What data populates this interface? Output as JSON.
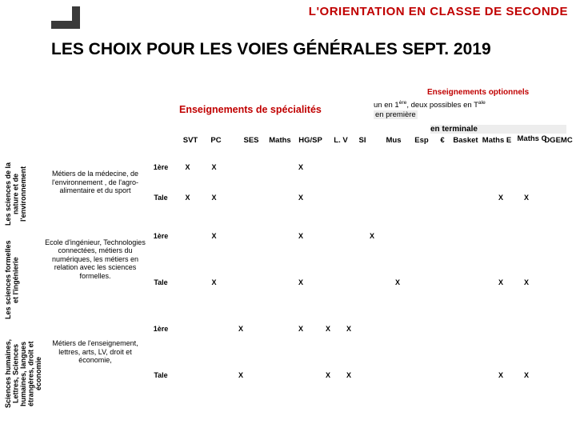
{
  "header": {
    "brand_title": "L'ORIENTATION EN CLASSE DE SECONDE",
    "brand_color": "#c00000"
  },
  "main_title": "LES CHOIX POUR LES VOIES GÉNÉRALES  SEPT. 2019",
  "subhead_optional": "Enseignements optionnels",
  "subhead_specialites": "Enseignements de spécialités",
  "optional_note_line1_a": "un en 1",
  "optional_note_line1_sup": "ère",
  "optional_note_line1_b": ", deux possibles  en T",
  "optional_note_line1_sup2": "ale",
  "optional_note_line2": "en première",
  "optional_terminale": "en terminale",
  "columns": {
    "svt": "SVT",
    "pc": "PC",
    "ses": "SES",
    "maths": "Maths",
    "hgsp": "HG/SP",
    "lv": "L. V",
    "si": "SI",
    "mus": "Mus",
    "esp": "Esp",
    "eur": "€",
    "basket": "Basket",
    "mathsE": "Maths E",
    "mathsC": "Maths C",
    "dgemc": "DGEMC"
  },
  "vcats": {
    "c1": "Les sciences de la nature et de l'environnement",
    "c2": "Les sciences formelles et l'ingénierie",
    "c3": "Sciences humaines, Lettres, Sciences humaines, langues étrangères, droit et économie"
  },
  "level_1ere": "1ère",
  "level_tale": "Tale",
  "rows": [
    {
      "desc": "Métiers de la médecine, de l'environnement , de l'agro-alimentaire et du sport",
      "r1": {
        "lvl": "1ère",
        "svt": "X",
        "pc": "X",
        "ses": "",
        "maths": "",
        "hgsp": "X",
        "lv": "",
        "si": "",
        "mus": "",
        "esp": "",
        "eur": "",
        "bk": "",
        "mE": "",
        "mC": "",
        "dg": ""
      },
      "r2": {
        "lvl": "Tale",
        "svt": "X",
        "pc": "X",
        "ses": "",
        "maths": "",
        "hgsp": "X",
        "lv": "",
        "si": "",
        "mus": "",
        "esp": "",
        "eur": "",
        "bk": "",
        "mE": "",
        "mC": "X",
        "dg": "X"
      }
    },
    {
      "desc": "Ecole d'ingénieur, Technologies connectées, métiers du numériques,  les métiers en relation avec les sciences formelles.",
      "r1": {
        "lvl": "1ère",
        "svt": "",
        "pc": "X",
        "ses": "",
        "maths": "",
        "hgsp": "X",
        "lv": "",
        "si": "",
        "mus": "X",
        "esp": "",
        "eur": "",
        "bk": "",
        "mE": "",
        "mC": "",
        "dg": ""
      },
      "r2": {
        "lvl": "Tale",
        "svt": "",
        "pc": "X",
        "ses": "",
        "maths": "",
        "hgsp": "X",
        "lv": "",
        "si": "",
        "mus": "",
        "esp": "X",
        "eur": "",
        "bk": "",
        "mE": "",
        "mC": "X",
        "dg": "X"
      }
    },
    {
      "desc": "Métiers de l'enseignement, lettres, arts, LV, droit et économie,",
      "r1": {
        "lvl": "1ère",
        "svt": "",
        "pc": "",
        "ses": "X",
        "maths": "",
        "hgsp": "X",
        "lv": "X",
        "si": "X",
        "mus": "",
        "esp": "",
        "eur": "",
        "bk": "",
        "mE": "",
        "mC": "",
        "dg": ""
      },
      "r2": {
        "lvl": "Tale",
        "svt": "",
        "pc": "",
        "ses": "X",
        "maths": "",
        "hgsp": "",
        "lv": "X",
        "si": "X",
        "mus": "",
        "esp": "",
        "eur": "",
        "bk": "",
        "mE": "",
        "mC": "X",
        "dg": "X"
      }
    }
  ]
}
